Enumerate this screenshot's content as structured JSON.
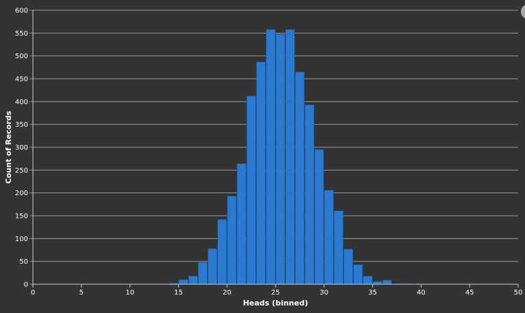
{
  "chart_data": {
    "type": "bar",
    "xlabel": "Heads (binned)",
    "ylabel": "Count of Records",
    "xlim": [
      0,
      50
    ],
    "ylim": [
      0,
      600
    ],
    "x_ticks": [
      "0",
      "5",
      "10",
      "15",
      "20",
      "25",
      "30",
      "35",
      "40",
      "45",
      "50"
    ],
    "y_ticks": [
      "0",
      "50",
      "100",
      "150",
      "200",
      "250",
      "300",
      "350",
      "400",
      "450",
      "500",
      "550",
      "600"
    ],
    "grid": true,
    "bin_width": 1,
    "bins": [
      {
        "start": 14,
        "value": 2
      },
      {
        "start": 15,
        "value": 10
      },
      {
        "start": 16,
        "value": 18
      },
      {
        "start": 17,
        "value": 48
      },
      {
        "start": 18,
        "value": 78
      },
      {
        "start": 19,
        "value": 142
      },
      {
        "start": 20,
        "value": 193
      },
      {
        "start": 21,
        "value": 264
      },
      {
        "start": 22,
        "value": 412
      },
      {
        "start": 23,
        "value": 487
      },
      {
        "start": 24,
        "value": 558
      },
      {
        "start": 25,
        "value": 548
      },
      {
        "start": 26,
        "value": 558
      },
      {
        "start": 27,
        "value": 465
      },
      {
        "start": 28,
        "value": 393
      },
      {
        "start": 29,
        "value": 295
      },
      {
        "start": 30,
        "value": 206
      },
      {
        "start": 31,
        "value": 161
      },
      {
        "start": 32,
        "value": 77
      },
      {
        "start": 33,
        "value": 43
      },
      {
        "start": 34,
        "value": 18
      },
      {
        "start": 35,
        "value": 6
      },
      {
        "start": 36,
        "value": 9
      },
      {
        "start": 37,
        "value": 1
      },
      {
        "start": 38,
        "value": 1
      }
    ],
    "colors": {
      "bar": "#2a7ad2",
      "bar_stroke": "#1d4f86",
      "background": "#333333",
      "grid": "#9a9a9a",
      "text": "#ffffff"
    }
  }
}
